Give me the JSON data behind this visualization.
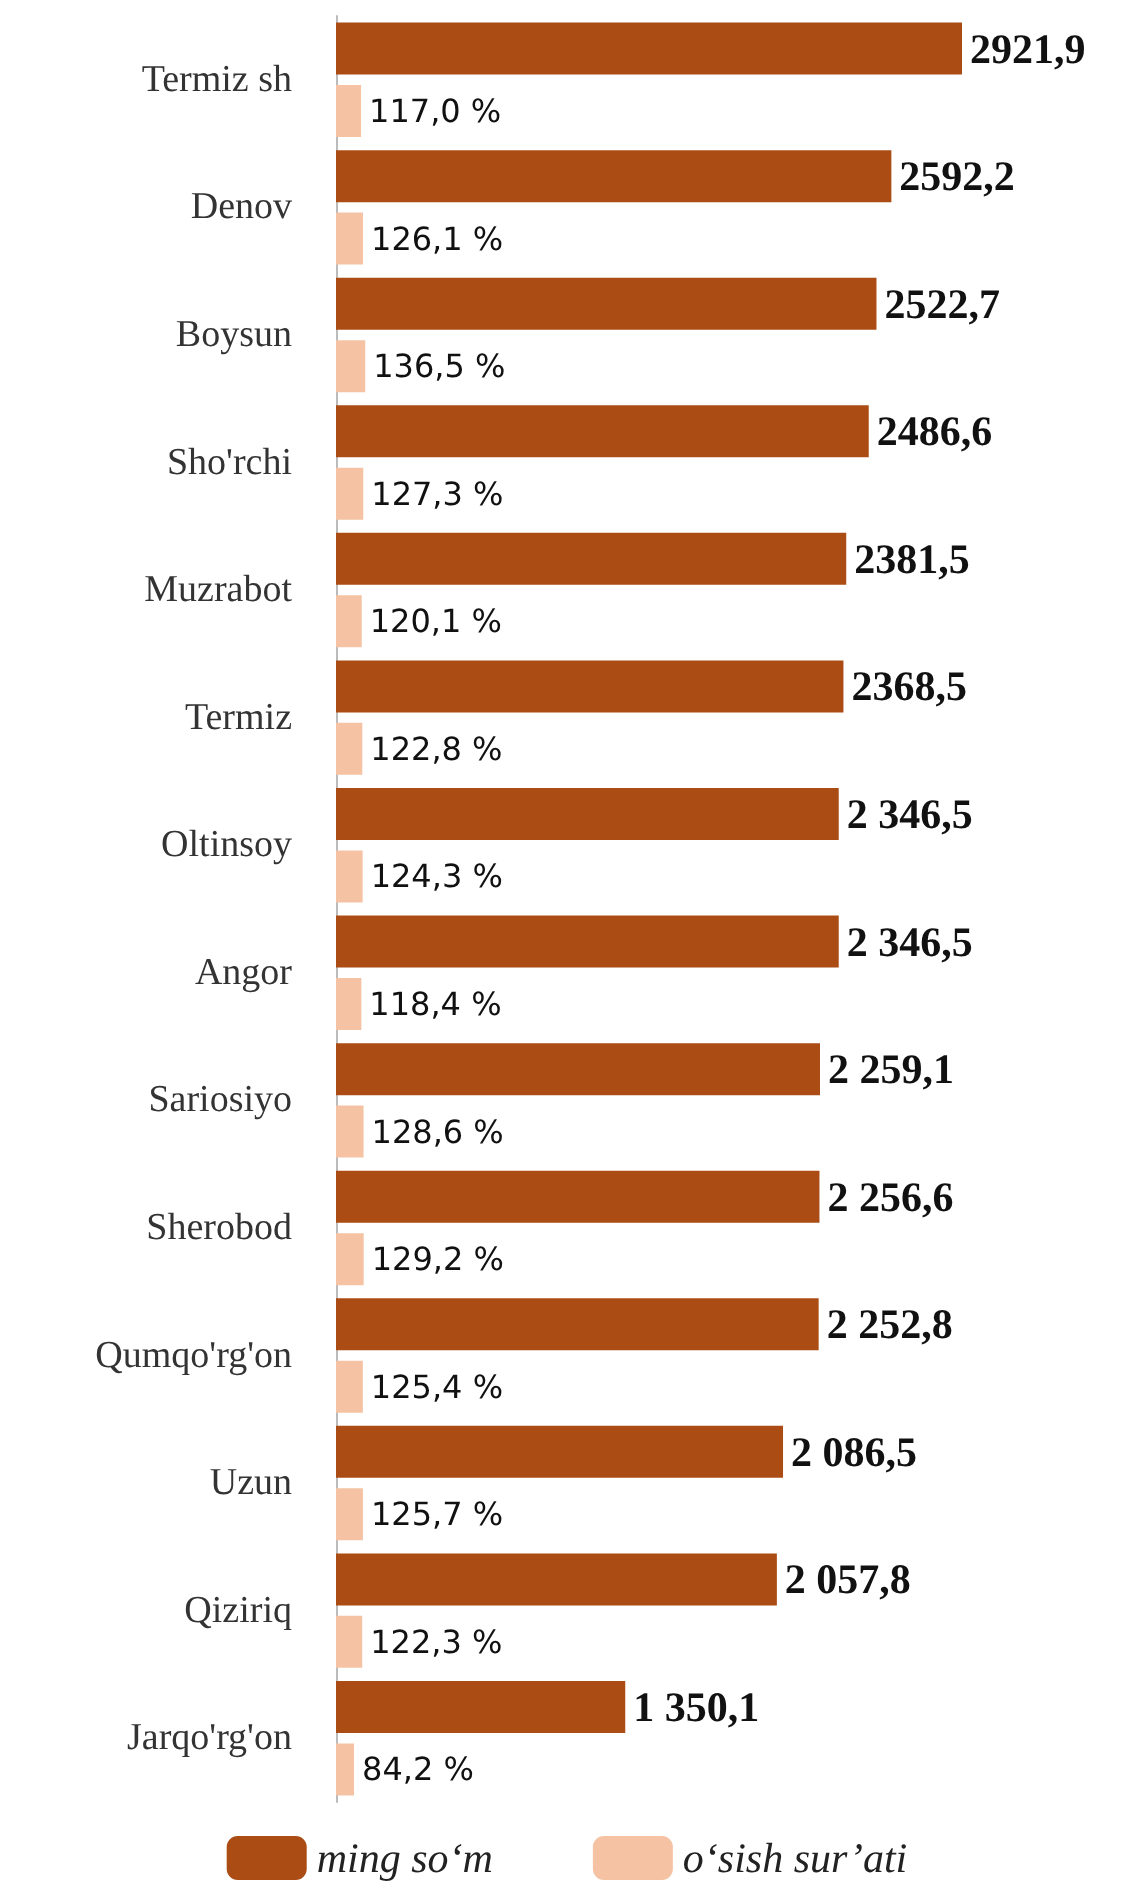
{
  "chart_data": {
    "type": "bar",
    "orientation": "horizontal",
    "legend": "bottom",
    "categories": [
      "Termiz sh",
      "Denov",
      "Boysun",
      "Sho'rchi",
      "Muzrabot",
      "Termiz",
      "Oltinsoy",
      "Angor",
      "Sariosiyo",
      "Sherobod",
      "Qumqo'rg'on",
      "Uzun",
      "Qiziriq",
      "Jarqo'rg'on"
    ],
    "series": [
      {
        "name": "ming so‘m",
        "color": "#ab4c14",
        "values": [
          2921.9,
          2592.2,
          2522.7,
          2486.6,
          2381.5,
          2368.5,
          2346.5,
          2346.5,
          2259.1,
          2256.6,
          2252.8,
          2086.5,
          2057.8,
          1350.1
        ],
        "value_labels": [
          "2921,9",
          "2592,2",
          "2522,7",
          "2486,6",
          "2381,5",
          "2368,5",
          "2 346,5",
          "2 346,5",
          "2 259,1",
          "2 256,6",
          "2 252,8",
          "2 086,5",
          "2 057,8",
          "1 350,1"
        ]
      },
      {
        "name": "o‘sish sur’ati",
        "color": "#f5c3a3",
        "values": [
          117.0,
          126.1,
          136.5,
          127.3,
          120.1,
          122.8,
          124.3,
          118.4,
          128.6,
          129.2,
          125.4,
          125.7,
          122.3,
          84.2
        ],
        "value_labels": [
          "117,0 %",
          "126,1 %",
          "136,5 %",
          "127,3 %",
          "120,1 %",
          "122,8 %",
          "124,3 %",
          "118,4 %",
          "128,6 %",
          "129,2 %",
          "125,4 %",
          "125,7 %",
          "122,3 %",
          "84,2 %"
        ]
      }
    ]
  }
}
